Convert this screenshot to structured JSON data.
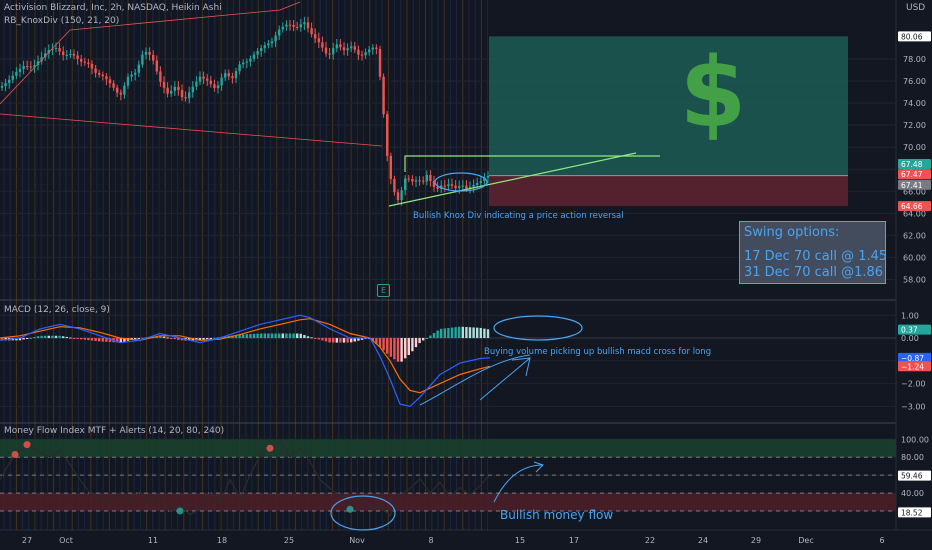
{
  "header": {
    "title": "Activision Blizzard, Inc, 2h, NASDAQ, Heikin Ashi",
    "indicator": "RB_KnoxDiv (150, 21, 20)",
    "currency": "USD"
  },
  "panes": {
    "macd": {
      "title": "MACD (12, 26, close, 9)"
    },
    "mfi": {
      "title": "Money Flow Index MTF + Alerts (14, 20, 80, 240)"
    }
  },
  "annotations": {
    "knox": "Bullish Knox Div indicating a price action reversal",
    "macd_note": "Buying volume picking up bullish macd cross for long",
    "money_flow": "Bullish money flow",
    "dollar": "$",
    "earnings_badge": "E"
  },
  "swing_box": {
    "title": "Swing options:",
    "lines": [
      "17 Dec 70 call @ 1.45",
      "31 Dec 70 call @1.86"
    ]
  },
  "colors": {
    "background": "#131722",
    "up": "#26a69a",
    "down": "#ef5350",
    "annotation_blue": "#4ba3f0",
    "trend_green": "#8fe87e",
    "dollar_green": "#43a047",
    "profit_zone": "#1c5c55",
    "loss_zone": "#5b2330",
    "macd_line": "#2962ff",
    "signal_line": "#ff6d00",
    "mfi_line": "#2c2c2c"
  },
  "chart_data": [
    {
      "type": "candlestick",
      "pane": "price",
      "style": "Heikin Ashi",
      "ylim": [
        56.5,
        81
      ],
      "y_ticks": [
        58.0,
        60.0,
        62.0,
        64.0,
        66.0,
        68.0,
        70.0,
        72.0,
        74.0,
        76.0,
        78.0
      ],
      "x_tick_labels": [
        "27",
        "Oct",
        "11",
        "18",
        "25",
        "Nov",
        "8",
        "15",
        "17",
        "22",
        "24",
        "29",
        "Dec",
        "6"
      ],
      "price_labels": [
        {
          "value": 80.06,
          "label": "80.06",
          "color": "#ffffff"
        },
        {
          "value": 67.48,
          "label": "67.48",
          "color": "#26a69a"
        },
        {
          "value": 67.47,
          "label": "67.47",
          "color": "#ef5350"
        },
        {
          "value": 67.41,
          "label": "67.41",
          "color": "#787b86"
        },
        {
          "value": 64.66,
          "label": "64.66",
          "color": "#ef5350"
        }
      ],
      "close_path": [
        [
          0,
          75.4
        ],
        [
          8,
          76.0
        ],
        [
          16,
          76.8
        ],
        [
          24,
          77.4
        ],
        [
          32,
          77.2
        ],
        [
          40,
          78.0
        ],
        [
          48,
          78.8
        ],
        [
          56,
          79.0
        ],
        [
          64,
          78.3
        ],
        [
          72,
          78.5
        ],
        [
          80,
          77.8
        ],
        [
          88,
          77.6
        ],
        [
          96,
          76.7
        ],
        [
          104,
          76.4
        ],
        [
          112,
          75.6
        ],
        [
          120,
          74.6
        ],
        [
          128,
          76.4
        ],
        [
          136,
          76.8
        ],
        [
          144,
          78.8
        ],
        [
          152,
          78.2
        ],
        [
          160,
          76.0
        ],
        [
          168,
          74.8
        ],
        [
          176,
          75.6
        ],
        [
          184,
          74.2
        ],
        [
          192,
          75.4
        ],
        [
          200,
          76.4
        ],
        [
          208,
          76.0
        ],
        [
          216,
          75.2
        ],
        [
          224,
          76.8
        ],
        [
          232,
          76.2
        ],
        [
          240,
          77.6
        ],
        [
          248,
          77.8
        ],
        [
          256,
          78.6
        ],
        [
          264,
          79.2
        ],
        [
          272,
          79.6
        ],
        [
          280,
          80.8
        ],
        [
          288,
          81.2
        ],
        [
          296,
          80.8
        ],
        [
          304,
          81.4
        ],
        [
          312,
          80.2
        ],
        [
          320,
          79.4
        ],
        [
          328,
          78.2
        ],
        [
          336,
          79.4
        ],
        [
          344,
          78.8
        ],
        [
          352,
          79.2
        ],
        [
          360,
          78.2
        ],
        [
          368,
          78.8
        ],
        [
          376,
          79.2
        ],
        [
          382,
          75.0
        ],
        [
          386,
          70.0
        ],
        [
          390,
          67.4
        ],
        [
          394,
          66.0
        ],
        [
          398,
          65.2
        ],
        [
          402,
          66.2
        ],
        [
          406,
          67.4
        ],
        [
          410,
          67.0
        ],
        [
          414,
          66.8
        ],
        [
          418,
          67.2
        ],
        [
          422,
          66.6
        ],
        [
          426,
          67.6
        ],
        [
          430,
          67.0
        ],
        [
          434,
          66.4
        ],
        [
          438,
          66.2
        ],
        [
          442,
          66.6
        ],
        [
          446,
          66.4
        ],
        [
          450,
          66.8
        ],
        [
          454,
          66.2
        ],
        [
          458,
          66.4
        ],
        [
          462,
          66.6
        ],
        [
          466,
          66.2
        ],
        [
          470,
          66.4
        ],
        [
          474,
          66.6
        ],
        [
          478,
          66.8
        ],
        [
          482,
          67.0
        ],
        [
          486,
          67.4
        ],
        [
          490,
          67.4
        ]
      ],
      "position": {
        "entry": 67.42,
        "target": 80.06,
        "stop": 64.66
      }
    },
    {
      "type": "macd",
      "pane": "macd",
      "title": "MACD (12, 26, close, 9)",
      "ylim": [
        -3.6,
        1.1
      ],
      "y_ticks": [
        -3.0,
        -2.0,
        -1.0,
        0.0,
        1.0
      ],
      "price_labels": [
        {
          "value": 0.37,
          "label": "0.37",
          "color": "#26a69a"
        },
        {
          "value": -0.87,
          "label": "−0.87",
          "color": "#2962ff"
        },
        {
          "value": -1.24,
          "label": "−1.24",
          "color": "#ef5350"
        }
      ],
      "macd_path": [
        [
          0,
          -0.1
        ],
        [
          20,
          0.0
        ],
        [
          40,
          0.4
        ],
        [
          60,
          0.6
        ],
        [
          80,
          0.4
        ],
        [
          100,
          0.1
        ],
        [
          120,
          -0.2
        ],
        [
          140,
          -0.1
        ],
        [
          160,
          0.2
        ],
        [
          180,
          0.0
        ],
        [
          200,
          -0.2
        ],
        [
          220,
          0.0
        ],
        [
          240,
          0.3
        ],
        [
          260,
          0.6
        ],
        [
          280,
          0.8
        ],
        [
          300,
          1.0
        ],
        [
          310,
          0.9
        ],
        [
          330,
          0.4
        ],
        [
          350,
          0.0
        ],
        [
          370,
          0.0
        ],
        [
          380,
          -0.8
        ],
        [
          390,
          -1.8
        ],
        [
          400,
          -2.9
        ],
        [
          410,
          -3.0
        ],
        [
          420,
          -2.6
        ],
        [
          440,
          -1.6
        ],
        [
          460,
          -1.1
        ],
        [
          480,
          -0.9
        ],
        [
          490,
          -0.87
        ]
      ],
      "signal_path": [
        [
          0,
          0.0
        ],
        [
          20,
          0.1
        ],
        [
          40,
          0.3
        ],
        [
          60,
          0.5
        ],
        [
          80,
          0.45
        ],
        [
          100,
          0.25
        ],
        [
          120,
          0.0
        ],
        [
          140,
          -0.1
        ],
        [
          160,
          0.1
        ],
        [
          180,
          0.1
        ],
        [
          200,
          -0.1
        ],
        [
          220,
          -0.05
        ],
        [
          240,
          0.15
        ],
        [
          260,
          0.4
        ],
        [
          280,
          0.6
        ],
        [
          300,
          0.8
        ],
        [
          310,
          0.85
        ],
        [
          330,
          0.6
        ],
        [
          350,
          0.2
        ],
        [
          370,
          0.0
        ],
        [
          380,
          -0.4
        ],
        [
          390,
          -1.0
        ],
        [
          400,
          -1.8
        ],
        [
          410,
          -2.3
        ],
        [
          420,
          -2.4
        ],
        [
          440,
          -2.0
        ],
        [
          460,
          -1.6
        ],
        [
          480,
          -1.35
        ],
        [
          490,
          -1.24
        ]
      ]
    },
    {
      "type": "line",
      "pane": "mfi",
      "title": "Money Flow Index MTF + Alerts (14, 20, 80, 240)",
      "ylim": [
        10,
        107
      ],
      "y_ticks": [
        20.0,
        40.0,
        60.0,
        80.0,
        100.0
      ],
      "levels": [
        80,
        20
      ],
      "price_labels": [
        {
          "value": 59.46,
          "label": "59.46",
          "color": "#ffffff"
        },
        {
          "value": 18.52,
          "label": "18.52",
          "color": "#ffffff"
        }
      ],
      "values_path": [
        [
          0,
          55
        ],
        [
          10,
          75
        ],
        [
          20,
          88
        ],
        [
          30,
          92
        ],
        [
          40,
          85
        ],
        [
          50,
          80
        ],
        [
          60,
          88
        ],
        [
          70,
          72
        ],
        [
          80,
          55
        ],
        [
          90,
          40
        ],
        [
          100,
          35
        ],
        [
          110,
          30
        ],
        [
          120,
          40
        ],
        [
          130,
          30
        ],
        [
          140,
          42
        ],
        [
          150,
          28
        ],
        [
          160,
          36
        ],
        [
          170,
          20
        ],
        [
          180,
          25
        ],
        [
          190,
          16
        ],
        [
          200,
          22
        ],
        [
          210,
          40
        ],
        [
          220,
          30
        ],
        [
          230,
          55
        ],
        [
          240,
          35
        ],
        [
          250,
          60
        ],
        [
          260,
          82
        ],
        [
          270,
          90
        ],
        [
          280,
          98
        ],
        [
          290,
          80
        ],
        [
          300,
          90
        ],
        [
          310,
          75
        ],
        [
          320,
          55
        ],
        [
          330,
          45
        ],
        [
          340,
          38
        ],
        [
          350,
          30
        ],
        [
          360,
          35
        ],
        [
          370,
          25
        ],
        [
          380,
          25
        ],
        [
          390,
          15
        ],
        [
          400,
          38
        ],
        [
          410,
          45
        ],
        [
          420,
          56
        ],
        [
          430,
          40
        ],
        [
          440,
          52
        ],
        [
          450,
          36
        ],
        [
          460,
          46
        ],
        [
          470,
          38
        ],
        [
          480,
          48
        ],
        [
          486,
          56
        ],
        [
          490,
          59.46
        ]
      ],
      "markers": [
        {
          "x": 15,
          "y": 83,
          "color": "#ef5350"
        },
        {
          "x": 27,
          "y": 94,
          "color": "#ef5350"
        },
        {
          "x": 270,
          "y": 90,
          "color": "#ef5350"
        },
        {
          "x": 180,
          "y": 20,
          "color": "#26a69a"
        },
        {
          "x": 350,
          "y": 22,
          "color": "#26a69a"
        }
      ]
    }
  ]
}
